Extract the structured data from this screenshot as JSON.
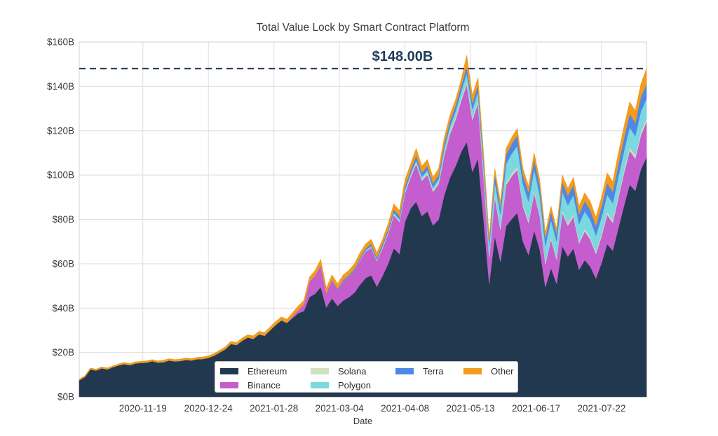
{
  "page": {
    "background": "#ffffff"
  },
  "colors": {
    "grid": "#dedede",
    "spine": "#d0d0d0",
    "tick_text": "#3a3a3a",
    "title_text": "#3b3b3b",
    "reference_line": "#29425c",
    "reference_label_text": "#1f3c5a",
    "legend_border": "#c9c9c9",
    "legend_background": "#ffffff"
  },
  "chart_data": {
    "type": "area",
    "stacked": true,
    "title": "Total Value Lock by Smart Contract Platform",
    "xlabel": "Date",
    "ylabel": "",
    "grid": true,
    "legend_position": "lower center",
    "ylim": [
      0,
      160
    ],
    "y_ticks": [
      0,
      20,
      40,
      60,
      80,
      100,
      120,
      140,
      160
    ],
    "y_tick_labels": [
      "$0B",
      "$20B",
      "$40B",
      "$60B",
      "$80B",
      "$100B",
      "$120B",
      "$140B",
      "$160B"
    ],
    "x_unit": "days from 2020-10-16 to 2021-08-16",
    "x_ticks": [
      {
        "day": 34,
        "label": "2020-11-19"
      },
      {
        "day": 69,
        "label": "2020-12-24"
      },
      {
        "day": 104,
        "label": "2021-01-28"
      },
      {
        "day": 139,
        "label": "2021-03-04"
      },
      {
        "day": 174,
        "label": "2021-04-08"
      },
      {
        "day": 209,
        "label": "2021-05-13"
      },
      {
        "day": 244,
        "label": "2021-06-17"
      },
      {
        "day": 279,
        "label": "2021-07-22"
      }
    ],
    "reference_line": {
      "value": 148,
      "label": "$148.00B",
      "style": "dashed"
    },
    "x": [
      0,
      3,
      6,
      9,
      12,
      15,
      18,
      21,
      24,
      27,
      30,
      33,
      36,
      39,
      42,
      45,
      48,
      51,
      54,
      57,
      60,
      63,
      66,
      69,
      72,
      75,
      78,
      81,
      84,
      87,
      90,
      93,
      96,
      99,
      102,
      105,
      108,
      111,
      114,
      117,
      120,
      123,
      126,
      129,
      132,
      135,
      138,
      141,
      144,
      147,
      150,
      153,
      156,
      159,
      162,
      165,
      168,
      171,
      174,
      177,
      180,
      183,
      186,
      189,
      192,
      195,
      198,
      201,
      204,
      207,
      210,
      213,
      216,
      219,
      222,
      225,
      228,
      231,
      234,
      237,
      240,
      243,
      246,
      249,
      252,
      255,
      258,
      261,
      264,
      267,
      270,
      273,
      276,
      279,
      282,
      285,
      288,
      291,
      294,
      297,
      300,
      303
    ],
    "series": [
      {
        "name": "Ethereum",
        "color": "#22384e",
        "values": [
          7.5,
          9,
          12.4,
          11.9,
          12.9,
          12.4,
          13.4,
          14.2,
          14.8,
          14.3,
          15.1,
          15.3,
          15.5,
          16.1,
          15.5,
          15.7,
          16.4,
          16,
          16.2,
          16.7,
          16.4,
          17,
          17.1,
          17.6,
          18.6,
          20,
          21.5,
          23.9,
          23.4,
          25.3,
          26.8,
          26.2,
          28.2,
          27.6,
          30.1,
          32.5,
          34.5,
          33.4,
          35.6,
          37.7,
          38.7,
          45,
          46.5,
          49.5,
          40.3,
          44.4,
          41,
          43.5,
          44.9,
          47,
          50.6,
          53.6,
          54.8,
          49.7,
          54.5,
          60,
          67,
          64.4,
          79,
          85,
          88,
          81.5,
          83.7,
          77.3,
          80,
          91,
          98.8,
          104,
          110.5,
          115,
          101.5,
          107.5,
          80,
          51,
          72.5,
          61,
          77,
          80.2,
          83,
          70,
          64,
          75,
          66.4,
          49.5,
          58.1,
          51,
          68,
          63.3,
          66.9,
          57.3,
          61.7,
          58.7,
          53.4,
          60.4,
          68.9,
          66,
          76.2,
          86.3,
          95.7,
          92.9,
          102.6,
          108
        ]
      },
      {
        "name": "Binance",
        "color": "#c45ecf",
        "values": [
          0,
          0,
          0,
          0,
          0,
          0,
          0,
          0,
          0,
          0,
          0,
          0,
          0,
          0,
          0,
          0,
          0,
          0,
          0,
          0,
          0,
          0,
          0,
          0,
          0,
          0,
          0,
          0,
          0,
          0,
          0,
          0,
          0,
          0,
          0,
          0,
          0,
          0,
          0.8,
          1.5,
          3,
          7,
          8.2,
          10,
          6.5,
          8,
          7.3,
          8.8,
          9.3,
          10,
          11,
          12,
          12.5,
          11.5,
          12.5,
          13.5,
          15,
          14.5,
          13,
          14,
          17,
          16,
          16.5,
          15.2,
          16,
          18,
          19.8,
          21,
          23,
          26,
          23.5,
          25,
          19,
          12,
          17.5,
          14.5,
          18.5,
          19.3,
          19.5,
          16,
          14.5,
          17,
          15,
          10.5,
          13,
          11,
          15,
          14,
          14.5,
          12,
          13,
          12.3,
          11.1,
          12,
          13.3,
          12.5,
          13.8,
          14.7,
          15.4,
          14.6,
          15.4,
          16
        ]
      },
      {
        "name": "Solana",
        "color": "#cfe1c0",
        "values": [
          0,
          0,
          0,
          0,
          0,
          0,
          0,
          0,
          0,
          0,
          0,
          0,
          0,
          0,
          0,
          0,
          0,
          0,
          0,
          0,
          0,
          0,
          0,
          0,
          0,
          0,
          0,
          0,
          0,
          0,
          0,
          0,
          0,
          0,
          0,
          0,
          0,
          0,
          0,
          0,
          0,
          0,
          0,
          0,
          0,
          0,
          0,
          0,
          0,
          0,
          0.3,
          0.3,
          0.4,
          0.3,
          0.4,
          0.4,
          0.5,
          0.5,
          0.6,
          0.7,
          0.8,
          0.7,
          0.8,
          0.7,
          0.8,
          0.9,
          1,
          1,
          1.1,
          1.3,
          1.1,
          1.2,
          1,
          0.7,
          1,
          0.9,
          1.1,
          1.2,
          1.2,
          1,
          1,
          1.1,
          1,
          0.8,
          0.9,
          0.8,
          1,
          1,
          1.1,
          0.9,
          1,
          1,
          0.9,
          1,
          1.1,
          1.1,
          1.2,
          1.3,
          1.4,
          1.4,
          1.5,
          1.5
        ]
      },
      {
        "name": "Polygon",
        "color": "#7bd7e0",
        "values": [
          0,
          0,
          0,
          0,
          0,
          0,
          0,
          0,
          0,
          0,
          0,
          0,
          0,
          0,
          0,
          0,
          0,
          0,
          0,
          0,
          0,
          0,
          0,
          0,
          0,
          0,
          0,
          0,
          0,
          0,
          0,
          0,
          0,
          0,
          0,
          0,
          0,
          0,
          0,
          0,
          0,
          0,
          0,
          0,
          0,
          0,
          0,
          0,
          0,
          0,
          0,
          0.2,
          0.3,
          0.3,
          0.4,
          0.5,
          0.6,
          0.7,
          0.8,
          0.9,
          1,
          1.1,
          1.2,
          1.3,
          1.6,
          2,
          2.4,
          2.8,
          3.2,
          3.7,
          3.6,
          3.9,
          4,
          4,
          6,
          6,
          8.4,
          9,
          9.6,
          9,
          8.6,
          9.5,
          8.8,
          7.2,
          7.8,
          7.4,
          8.6,
          8.2,
          8.5,
          7.8,
          8,
          7.8,
          7.4,
          7.6,
          8,
          7.8,
          8.2,
          8.6,
          9,
          8.8,
          9.2,
          9
        ]
      },
      {
        "name": "Terra",
        "color": "#4f87e6",
        "values": [
          0,
          0,
          0,
          0,
          0,
          0,
          0,
          0,
          0,
          0,
          0,
          0,
          0,
          0,
          0,
          0,
          0,
          0,
          0,
          0,
          0,
          0,
          0,
          0,
          0,
          0,
          0,
          0,
          0,
          0,
          0,
          0,
          0,
          0,
          0,
          0,
          0,
          0,
          0,
          0,
          0,
          0,
          0,
          0,
          0,
          0.4,
          0.5,
          0.5,
          0.6,
          0.7,
          0.8,
          0.9,
          1,
          1,
          1.1,
          1.2,
          1.4,
          1.4,
          1.6,
          1.6,
          2,
          1.8,
          1.9,
          1.7,
          1.8,
          2.1,
          2.2,
          2.4,
          2.5,
          3,
          2.8,
          2.9,
          2.8,
          2.3,
          3.5,
          3.2,
          4.2,
          4.4,
          4.6,
          4.2,
          4.1,
          4.5,
          4.1,
          3.6,
          3.8,
          3.6,
          4.4,
          4.3,
          4.6,
          4.4,
          4.6,
          4.5,
          4.4,
          4.8,
          5.2,
          5.1,
          5.6,
          5.9,
          6.1,
          6,
          6.5,
          6.5
        ]
      },
      {
        "name": "Other",
        "color": "#f29b1d",
        "values": [
          0.5,
          0.5,
          0.6,
          0.6,
          0.6,
          0.6,
          0.6,
          0.6,
          0.7,
          0.7,
          0.7,
          0.7,
          0.7,
          0.7,
          0.7,
          0.8,
          0.8,
          0.8,
          0.8,
          0.8,
          0.8,
          0.8,
          0.9,
          0.9,
          0.9,
          1,
          1,
          1.1,
          1.1,
          1.2,
          1.2,
          1.3,
          1.3,
          1.4,
          1.4,
          1.5,
          1.5,
          1.6,
          1.6,
          1.8,
          1.8,
          2,
          2.3,
          2.5,
          2.2,
          2.2,
          2.2,
          2.2,
          2.2,
          2.3,
          2.3,
          2,
          2,
          2.2,
          2.1,
          2.4,
          2.5,
          2.5,
          3,
          2.8,
          3.2,
          2.9,
          2.9,
          2.8,
          2.8,
          3,
          2.8,
          2.8,
          2.7,
          5,
          3.5,
          3.5,
          3.2,
          2,
          2.5,
          2.4,
          2.8,
          2.9,
          3.1,
          2.8,
          2.8,
          2.9,
          2.7,
          2.4,
          2.4,
          2.2,
          3,
          3.2,
          3.4,
          3.6,
          3.7,
          3.7,
          3.8,
          4.2,
          4.5,
          4.5,
          5,
          5.2,
          5.4,
          5.3,
          5.8,
          7
        ]
      }
    ]
  }
}
